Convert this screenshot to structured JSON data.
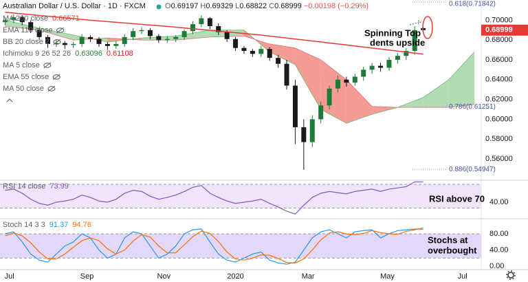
{
  "chart_data": [
    {
      "type": "candlestick",
      "title": "Australian Dollar / U.S. Dollar · 1D · FXCM",
      "ohlc_labels": [
        "O",
        "H",
        "L",
        "C"
      ],
      "change": "−0.00198 (−0.29%)",
      "up_color": "#1e7a3a",
      "down_color": "#1a1a1a",
      "candles": {
        "open": [
          0.698,
          0.7,
          0.703,
          0.698,
          0.69,
          0.683,
          0.676,
          0.677,
          0.675,
          0.676,
          0.683,
          0.681,
          0.676,
          0.674,
          0.676,
          0.683,
          0.689,
          0.69,
          0.684,
          0.68,
          0.681,
          0.683,
          0.689,
          0.696,
          0.702,
          0.694,
          0.688,
          0.681,
          0.672,
          0.669,
          0.666,
          0.671,
          0.662,
          0.656,
          0.634,
          0.592,
          0.577,
          0.6,
          0.614,
          0.631,
          0.64,
          0.637,
          0.643,
          0.65,
          0.654,
          0.652,
          0.66,
          0.664,
          0.669,
          0.69197
        ],
        "high": [
          0.703,
          0.706,
          0.705,
          0.7,
          0.692,
          0.685,
          0.68,
          0.679,
          0.678,
          0.686,
          0.685,
          0.683,
          0.678,
          0.679,
          0.686,
          0.692,
          0.693,
          0.692,
          0.686,
          0.684,
          0.685,
          0.691,
          0.699,
          0.705,
          0.703,
          0.697,
          0.69,
          0.683,
          0.674,
          0.671,
          0.674,
          0.673,
          0.665,
          0.66,
          0.64,
          0.6,
          0.604,
          0.618,
          0.634,
          0.644,
          0.643,
          0.646,
          0.653,
          0.657,
          0.657,
          0.663,
          0.667,
          0.672,
          0.694,
          0.69329
        ],
        "low": [
          0.695,
          0.697,
          0.695,
          0.687,
          0.68,
          0.672,
          0.673,
          0.671,
          0.672,
          0.673,
          0.678,
          0.673,
          0.67,
          0.671,
          0.673,
          0.68,
          0.686,
          0.681,
          0.677,
          0.677,
          0.678,
          0.68,
          0.686,
          0.693,
          0.691,
          0.685,
          0.678,
          0.669,
          0.666,
          0.663,
          0.663,
          0.659,
          0.652,
          0.63,
          0.575,
          0.549,
          0.572,
          0.596,
          0.61,
          0.627,
          0.633,
          0.634,
          0.639,
          0.646,
          0.648,
          0.649,
          0.656,
          0.66,
          0.665,
          0.68822
        ],
        "close": [
          0.7,
          0.703,
          0.698,
          0.69,
          0.683,
          0.676,
          0.677,
          0.675,
          0.676,
          0.683,
          0.681,
          0.676,
          0.674,
          0.676,
          0.683,
          0.689,
          0.69,
          0.684,
          0.68,
          0.681,
          0.683,
          0.689,
          0.696,
          0.702,
          0.694,
          0.688,
          0.681,
          0.672,
          0.669,
          0.666,
          0.671,
          0.662,
          0.656,
          0.634,
          0.592,
          0.577,
          0.6,
          0.614,
          0.631,
          0.64,
          0.637,
          0.643,
          0.65,
          0.654,
          0.652,
          0.66,
          0.664,
          0.669,
          0.69,
          0.68999
        ]
      },
      "xlim": [
        -0.6,
        55.8
      ],
      "xticks": [
        {
          "value": 0.5,
          "label": "Jul"
        },
        {
          "value": 9.6,
          "label": "Sep"
        },
        {
          "value": 18.6,
          "label": "Nov"
        },
        {
          "value": 27.0,
          "label": "2020"
        },
        {
          "value": 35.5,
          "label": "Mar"
        },
        {
          "value": 44.8,
          "label": "May"
        },
        {
          "value": 53.6,
          "label": "Jul"
        }
      ],
      "ylim": [
        0.5385,
        0.7204
      ],
      "yticks": [
        {
          "value": 0.56,
          "label": "0.56000"
        },
        {
          "value": 0.58,
          "label": "0.58000"
        },
        {
          "value": 0.6,
          "label": "0.60000"
        },
        {
          "value": 0.62,
          "label": "0.62000"
        },
        {
          "value": 0.64,
          "label": "0.64000"
        },
        {
          "value": 0.66,
          "label": "0.66000"
        },
        {
          "value": 0.68,
          "label": "0.68000"
        },
        {
          "value": 0.7,
          "label": "0.70000"
        }
      ],
      "series": [
        {
          "color": "#e53935",
          "x": [
            0,
            10,
            20,
            30,
            40,
            49
          ],
          "values": [
            0.708,
            0.7,
            0.693,
            0.685,
            0.675,
            0.6657
          ]
        }
      ],
      "ichimoku": {
        "x": [
          0,
          4,
          8,
          12,
          16,
          20,
          24,
          28,
          31,
          34,
          37,
          40,
          43,
          46,
          49,
          52,
          55
        ],
        "span_a": [
          0.7,
          0.692,
          0.685,
          0.678,
          0.682,
          0.684,
          0.69,
          0.69,
          0.668,
          0.655,
          0.61,
          0.596,
          0.605,
          0.612,
          0.622,
          0.64,
          0.668
        ],
        "span_b": [
          0.694,
          0.69,
          0.68,
          0.682,
          0.68,
          0.68,
          0.683,
          0.684,
          0.676,
          0.672,
          0.66,
          0.64,
          0.613,
          0.612,
          0.612,
          0.612,
          0.615
        ],
        "bull_color": "#a5d6a7",
        "bear_color": "#f28b82"
      },
      "indicator_legend": [
        {
          "name": "MA 200 close",
          "values": [
            0.66571
          ],
          "colors": [
            "#e53935"
          ],
          "visible": true
        },
        {
          "name": "EMA 110 close",
          "visible": false
        },
        {
          "name": "BB 20 close 2",
          "visible": false
        },
        {
          "name": "Ichimoku 9 26 52 26",
          "values": [
            0.63096,
            0.61108
          ],
          "colors": [
            "#2e7d32",
            "#c62828"
          ],
          "visible": true
        },
        {
          "name": "MA 5 close",
          "visible": false
        },
        {
          "name": "EMA 55 close",
          "visible": false
        },
        {
          "name": "MA 50 close",
          "visible": false
        }
      ],
      "fib_levels": [
        {
          "value": 0.71842,
          "label": "0.618(0.71842)"
        },
        {
          "value": 0.61251,
          "label": "0.786(0.61251)"
        },
        {
          "value": 0.54947,
          "label": "0.886(0.54947)"
        }
      ],
      "annotation": [
        "Spinning Top",
        "dents upside"
      ]
    },
    {
      "type": "line",
      "title": "RSI 14 close",
      "ylim": [
        12.3,
        76.9
      ],
      "yticks": [
        {
          "value": 40,
          "label": "40.00"
        }
      ],
      "band": [
        30,
        70
      ],
      "band_color": "#f0e4fb",
      "series": [
        {
          "color": "#7e57c2",
          "values": [
            60,
            62,
            55,
            45,
            38,
            35,
            40,
            42,
            45,
            52,
            48,
            42,
            40,
            45,
            55,
            60,
            58,
            50,
            45,
            48,
            52,
            58,
            65,
            68,
            55,
            48,
            42,
            38,
            40,
            42,
            45,
            38,
            32,
            25,
            20,
            35,
            48,
            55,
            58,
            56,
            54,
            58,
            60,
            62,
            58,
            62,
            64,
            66,
            74,
            73.99
          ]
        }
      ],
      "annotation": [
        "RSI above 70"
      ]
    },
    {
      "type": "line",
      "title": "Stoch 14 3 3",
      "ylim": [
        -8.5,
        117.4
      ],
      "yticks": [
        {
          "value": 80,
          "label": "80.00"
        },
        {
          "value": 40,
          "label": "40.00"
        },
        {
          "value": 0,
          "label": "0.00"
        }
      ],
      "band": [
        20,
        80
      ],
      "band_color": "#e4d8fa",
      "series": [
        {
          "color": "#2196f3",
          "values": [
            80,
            85,
            60,
            30,
            15,
            10,
            30,
            50,
            60,
            80,
            70,
            40,
            20,
            30,
            70,
            85,
            80,
            50,
            20,
            30,
            50,
            80,
            90,
            92,
            60,
            30,
            15,
            10,
            20,
            30,
            35,
            15,
            8,
            5,
            10,
            40,
            70,
            85,
            90,
            80,
            70,
            85,
            88,
            90,
            70,
            80,
            88,
            90,
            92,
            91.37
          ]
        },
        {
          "color": "#ff6d00",
          "values": [
            75,
            82,
            75,
            58,
            35,
            18,
            18,
            30,
            47,
            63,
            70,
            63,
            43,
            30,
            40,
            62,
            78,
            72,
            50,
            33,
            33,
            53,
            73,
            87,
            81,
            61,
            35,
            18,
            15,
            20,
            28,
            27,
            19,
            9,
            8,
            18,
            40,
            65,
            82,
            85,
            80,
            78,
            81,
            88,
            83,
            80,
            79,
            86,
            90,
            94.76
          ]
        }
      ],
      "annotation": [
        "Stochs at",
        "overbought"
      ]
    }
  ]
}
